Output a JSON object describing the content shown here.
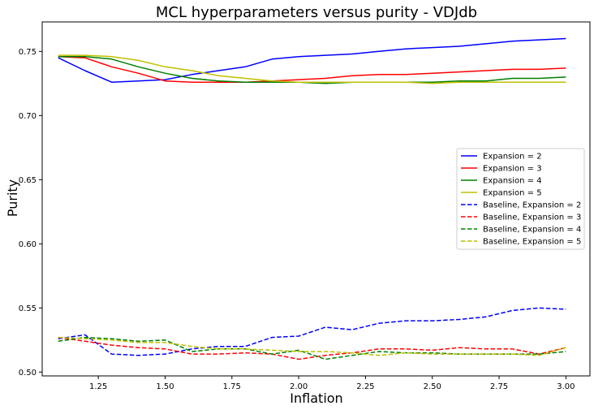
{
  "chart_data": {
    "type": "line",
    "title": "MCL hyperparameters versus purity - VDJdb",
    "xlabel": "Inflation",
    "ylabel": "Purity",
    "xlim": [
      1.04,
      3.09
    ],
    "ylim": [
      0.497,
      0.773
    ],
    "xticks": [
      1.25,
      1.5,
      1.75,
      2.0,
      2.25,
      2.5,
      2.75,
      3.0
    ],
    "xtick_labels": [
      "1.25",
      "1.50",
      "1.75",
      "2.00",
      "2.25",
      "2.50",
      "2.75",
      "3.00"
    ],
    "yticks": [
      0.5,
      0.55,
      0.6,
      0.65,
      0.7,
      0.75
    ],
    "ytick_labels": [
      "0.50",
      "0.55",
      "0.60",
      "0.65",
      "0.70",
      "0.75"
    ],
    "grid": false,
    "legend_position": "center-right",
    "x": [
      1.1,
      1.2,
      1.3,
      1.4,
      1.5,
      1.6,
      1.7,
      1.8,
      1.9,
      2.0,
      2.1,
      2.2,
      2.3,
      2.4,
      2.5,
      2.6,
      2.7,
      2.8,
      2.9,
      3.0
    ],
    "series": [
      {
        "name": "Expansion = 2",
        "color": "#0000ff",
        "dash": "solid",
        "values": [
          0.745,
          0.735,
          0.726,
          0.727,
          0.728,
          0.732,
          0.735,
          0.738,
          0.744,
          0.746,
          0.747,
          0.748,
          0.75,
          0.752,
          0.753,
          0.754,
          0.756,
          0.758,
          0.759,
          0.76
        ]
      },
      {
        "name": "Expansion = 3",
        "color": "#ff0000",
        "dash": "solid",
        "values": [
          0.746,
          0.745,
          0.738,
          0.733,
          0.727,
          0.726,
          0.726,
          0.726,
          0.727,
          0.728,
          0.729,
          0.731,
          0.732,
          0.732,
          0.733,
          0.734,
          0.735,
          0.736,
          0.736,
          0.737
        ]
      },
      {
        "name": "Expansion = 4",
        "color": "#008000",
        "dash": "solid",
        "values": [
          0.746,
          0.746,
          0.744,
          0.738,
          0.733,
          0.729,
          0.727,
          0.726,
          0.726,
          0.726,
          0.725,
          0.726,
          0.726,
          0.726,
          0.726,
          0.727,
          0.727,
          0.729,
          0.729,
          0.73
        ]
      },
      {
        "name": "Expansion = 5",
        "color": "#bfbf00",
        "dash": "solid",
        "values": [
          0.747,
          0.747,
          0.746,
          0.743,
          0.738,
          0.735,
          0.731,
          0.729,
          0.727,
          0.726,
          0.726,
          0.726,
          0.726,
          0.726,
          0.725,
          0.726,
          0.726,
          0.726,
          0.726,
          0.726
        ]
      },
      {
        "name": "Baseline, Expansion = 2",
        "color": "#0000ff",
        "dash": "dashed",
        "values": [
          0.526,
          0.529,
          0.514,
          0.513,
          0.514,
          0.518,
          0.52,
          0.52,
          0.527,
          0.528,
          0.535,
          0.533,
          0.538,
          0.54,
          0.54,
          0.541,
          0.543,
          0.548,
          0.55,
          0.549
        ]
      },
      {
        "name": "Baseline, Expansion = 3",
        "color": "#ff0000",
        "dash": "dashed",
        "values": [
          0.527,
          0.524,
          0.521,
          0.519,
          0.518,
          0.514,
          0.514,
          0.515,
          0.514,
          0.51,
          0.513,
          0.515,
          0.518,
          0.518,
          0.517,
          0.519,
          0.518,
          0.518,
          0.514,
          0.519
        ]
      },
      {
        "name": "Baseline, Expansion = 4",
        "color": "#008000",
        "dash": "dashed",
        "values": [
          0.524,
          0.527,
          0.526,
          0.524,
          0.525,
          0.516,
          0.518,
          0.518,
          0.514,
          0.517,
          0.51,
          0.513,
          0.516,
          0.515,
          0.515,
          0.514,
          0.514,
          0.514,
          0.514,
          0.516
        ]
      },
      {
        "name": "Baseline, Expansion = 5",
        "color": "#bfbf00",
        "dash": "dashed",
        "values": [
          0.527,
          0.526,
          0.525,
          0.523,
          0.523,
          0.52,
          0.518,
          0.518,
          0.517,
          0.516,
          0.516,
          0.515,
          0.513,
          0.515,
          0.514,
          0.514,
          0.514,
          0.514,
          0.513,
          0.519
        ]
      }
    ]
  }
}
